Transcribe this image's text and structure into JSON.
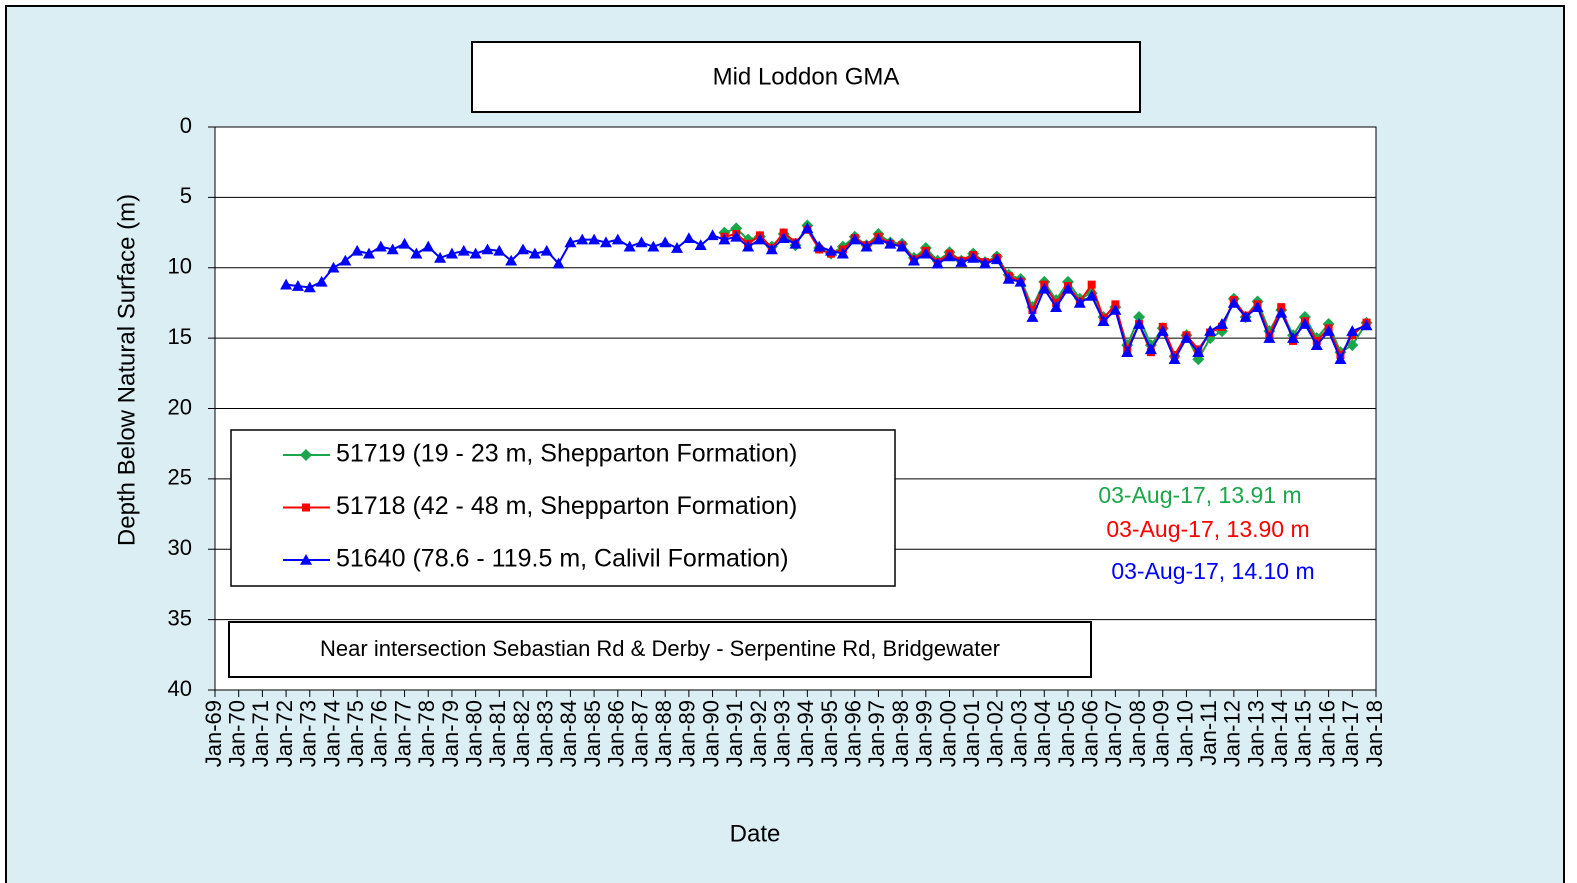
{
  "chart_data": {
    "type": "line",
    "title": "Mid Loddon GMA",
    "subtitle": "Near intersection Sebastian Rd & Derby - Serpentine Rd, Bridgewater",
    "x_label": "Date",
    "y_label": "Depth Below Natural Surface (m)",
    "y_inverted": true,
    "grid": true,
    "legend": "lower-left",
    "ylim": [
      0,
      40
    ],
    "yticks": [
      0,
      5,
      10,
      15,
      20,
      25,
      30,
      35,
      40
    ],
    "xlim": [
      1969,
      2018
    ],
    "xticks": [
      {
        "value": 1969,
        "label": "Jan-69"
      },
      {
        "value": 1970,
        "label": "Jan-70"
      },
      {
        "value": 1971,
        "label": "Jan-71"
      },
      {
        "value": 1972,
        "label": "Jan-72"
      },
      {
        "value": 1973,
        "label": "Jan-73"
      },
      {
        "value": 1974,
        "label": "Jan-74"
      },
      {
        "value": 1975,
        "label": "Jan-75"
      },
      {
        "value": 1976,
        "label": "Jan-76"
      },
      {
        "value": 1977,
        "label": "Jan-77"
      },
      {
        "value": 1978,
        "label": "Jan-78"
      },
      {
        "value": 1979,
        "label": "Jan-79"
      },
      {
        "value": 1980,
        "label": "Jan-80"
      },
      {
        "value": 1981,
        "label": "Jan-81"
      },
      {
        "value": 1982,
        "label": "Jan-82"
      },
      {
        "value": 1983,
        "label": "Jan-83"
      },
      {
        "value": 1984,
        "label": "Jan-84"
      },
      {
        "value": 1985,
        "label": "Jan-85"
      },
      {
        "value": 1986,
        "label": "Jan-86"
      },
      {
        "value": 1987,
        "label": "Jan-87"
      },
      {
        "value": 1988,
        "label": "Jan-88"
      },
      {
        "value": 1989,
        "label": "Jan-89"
      },
      {
        "value": 1990,
        "label": "Jan-90"
      },
      {
        "value": 1991,
        "label": "Jan-91"
      },
      {
        "value": 1992,
        "label": "Jan-92"
      },
      {
        "value": 1993,
        "label": "Jan-93"
      },
      {
        "value": 1994,
        "label": "Jan-94"
      },
      {
        "value": 1995,
        "label": "Jan-95"
      },
      {
        "value": 1996,
        "label": "Jan-96"
      },
      {
        "value": 1997,
        "label": "Jan-97"
      },
      {
        "value": 1998,
        "label": "Jan-98"
      },
      {
        "value": 1999,
        "label": "Jan-99"
      },
      {
        "value": 2000,
        "label": "Jan-00"
      },
      {
        "value": 2001,
        "label": "Jan-01"
      },
      {
        "value": 2002,
        "label": "Jan-02"
      },
      {
        "value": 2003,
        "label": "Jan-03"
      },
      {
        "value": 2004,
        "label": "Jan-04"
      },
      {
        "value": 2005,
        "label": "Jan-05"
      },
      {
        "value": 2006,
        "label": "Jan-06"
      },
      {
        "value": 2007,
        "label": "Jan-07"
      },
      {
        "value": 2008,
        "label": "Jan-08"
      },
      {
        "value": 2009,
        "label": "Jan-09"
      },
      {
        "value": 2010,
        "label": "Jan-10"
      },
      {
        "value": 2011,
        "label": "Jan-11"
      },
      {
        "value": 2012,
        "label": "Jan-12"
      },
      {
        "value": 2013,
        "label": "Jan-13"
      },
      {
        "value": 2014,
        "label": "Jan-14"
      },
      {
        "value": 2015,
        "label": "Jan-15"
      },
      {
        "value": 2016,
        "label": "Jan-16"
      },
      {
        "value": 2017,
        "label": "Jan-17"
      },
      {
        "value": 2018,
        "label": "Jan-18"
      }
    ],
    "series": [
      {
        "name": "51719 (19 - 23 m, Shepparton Formation)",
        "color": "#1aa64a",
        "marker": "diamond",
        "x": [
          1990.5,
          1991,
          1991.5,
          1992,
          1992.5,
          1993,
          1993.5,
          1994,
          1994.5,
          1995,
          1995.5,
          1996,
          1996.5,
          1997,
          1997.5,
          1998,
          1998.5,
          1999,
          1999.5,
          2000,
          2000.5,
          2001,
          2001.5,
          2002,
          2002.5,
          2003,
          2003.5,
          2004,
          2004.5,
          2005,
          2005.5,
          2006,
          2006.5,
          2007,
          2007.5,
          2008,
          2008.5,
          2009,
          2009.5,
          2010,
          2010.5,
          2011,
          2011.5,
          2012,
          2012.5,
          2013,
          2013.5,
          2014,
          2014.5,
          2015,
          2015.5,
          2016,
          2016.5,
          2017,
          2017.6
        ],
        "values": [
          7.5,
          7.2,
          8.0,
          7.8,
          8.5,
          7.6,
          8.4,
          7.0,
          8.6,
          9.0,
          8.5,
          7.8,
          8.4,
          7.6,
          8.2,
          8.3,
          9.3,
          8.6,
          9.5,
          8.9,
          9.5,
          9.0,
          9.6,
          9.2,
          10.5,
          10.8,
          12.8,
          11.0,
          12.3,
          11.0,
          12.2,
          11.8,
          13.5,
          12.8,
          15.5,
          13.5,
          15.5,
          14.3,
          16.3,
          14.8,
          16.5,
          15.0,
          14.5,
          12.2,
          13.5,
          12.4,
          14.5,
          13.0,
          14.8,
          13.5,
          15.0,
          14.0,
          16.0,
          15.5,
          13.91
        ]
      },
      {
        "name": "51718 (42 - 48 m, Shepparton Formation)",
        "color": "#ff0000",
        "marker": "square",
        "x": [
          1990.5,
          1991,
          1991.5,
          1992,
          1992.5,
          1993,
          1993.5,
          1994,
          1994.5,
          1995,
          1995.5,
          1996,
          1996.5,
          1997,
          1997.5,
          1998,
          1998.5,
          1999,
          1999.5,
          2000,
          2000.5,
          2001,
          2001.5,
          2002,
          2002.5,
          2003,
          2003.5,
          2004,
          2004.5,
          2005,
          2005.5,
          2006,
          2006.5,
          2007,
          2007.5,
          2008,
          2008.5,
          2009,
          2009.5,
          2010,
          2010.5,
          2011,
          2011.5,
          2012,
          2012.5,
          2013,
          2013.5,
          2014,
          2014.5,
          2015,
          2015.5,
          2016,
          2016.5,
          2017,
          2017.6
        ],
        "values": [
          7.8,
          7.6,
          8.3,
          7.7,
          8.6,
          7.5,
          8.2,
          7.3,
          8.7,
          9.0,
          8.7,
          7.9,
          8.4,
          7.8,
          8.3,
          8.4,
          9.4,
          8.8,
          9.6,
          9.0,
          9.5,
          9.1,
          9.6,
          9.3,
          10.6,
          11.0,
          13.0,
          11.2,
          12.5,
          11.3,
          12.4,
          11.2,
          13.6,
          12.6,
          15.8,
          14.0,
          16.0,
          14.2,
          16.2,
          14.8,
          15.8,
          14.6,
          14.2,
          12.3,
          13.4,
          12.6,
          14.8,
          12.8,
          15.2,
          13.8,
          15.2,
          14.3,
          16.2,
          14.8,
          13.9
        ]
      },
      {
        "name": "51640 (78.6 - 119.5 m, Calivil Formation)",
        "color": "#0000ff",
        "marker": "triangle",
        "x": [
          1972,
          1972.5,
          1973,
          1973.5,
          1974,
          1974.5,
          1975,
          1975.5,
          1976,
          1976.5,
          1977,
          1977.5,
          1978,
          1978.5,
          1979,
          1979.5,
          1980,
          1980.5,
          1981,
          1981.5,
          1982,
          1982.5,
          1983,
          1983.5,
          1984,
          1984.5,
          1985,
          1985.5,
          1986,
          1986.5,
          1987,
          1987.5,
          1988,
          1988.5,
          1989,
          1989.5,
          1990,
          1990.5,
          1991,
          1991.5,
          1992,
          1992.5,
          1993,
          1993.5,
          1994,
          1994.5,
          1995,
          1995.5,
          1996,
          1996.5,
          1997,
          1997.5,
          1998,
          1998.5,
          1999,
          1999.5,
          2000,
          2000.5,
          2001,
          2001.5,
          2002,
          2002.5,
          2003,
          2003.5,
          2004,
          2004.5,
          2005,
          2005.5,
          2006,
          2006.5,
          2007,
          2007.5,
          2008,
          2008.5,
          2009,
          2009.5,
          2010,
          2010.5,
          2011,
          2011.5,
          2012,
          2012.5,
          2013,
          2013.5,
          2014,
          2014.5,
          2015,
          2015.5,
          2016,
          2016.5,
          2017,
          2017.6
        ],
        "values": [
          11.2,
          11.3,
          11.4,
          11.0,
          10.0,
          9.5,
          8.8,
          9.0,
          8.5,
          8.7,
          8.3,
          9.0,
          8.5,
          9.3,
          9.0,
          8.8,
          9.0,
          8.7,
          8.8,
          9.5,
          8.7,
          9.0,
          8.8,
          9.7,
          8.2,
          8.0,
          8.0,
          8.2,
          8.0,
          8.5,
          8.2,
          8.5,
          8.2,
          8.6,
          7.9,
          8.4,
          7.7,
          8.0,
          7.8,
          8.5,
          8.0,
          8.7,
          7.9,
          8.3,
          7.2,
          8.5,
          8.8,
          9.0,
          8.0,
          8.5,
          8.0,
          8.3,
          8.5,
          9.5,
          9.0,
          9.7,
          9.2,
          9.6,
          9.3,
          9.7,
          9.4,
          10.8,
          11.0,
          13.5,
          11.5,
          12.8,
          11.5,
          12.5,
          12.0,
          13.8,
          13.0,
          16.0,
          14.0,
          15.8,
          14.5,
          16.5,
          15.0,
          16.0,
          14.5,
          14.0,
          12.5,
          13.5,
          12.8,
          15.0,
          13.2,
          15.0,
          14.0,
          15.5,
          14.5,
          16.5,
          14.5,
          14.1
        ]
      }
    ],
    "annotations": [
      {
        "text": "03-Aug-17,  13.91 m",
        "color": "#1aa64a"
      },
      {
        "text": "03-Aug-17,  13.90 m",
        "color": "#ff0000"
      },
      {
        "text": "03-Aug-17,  14.10 m",
        "color": "#0000ff"
      }
    ]
  }
}
